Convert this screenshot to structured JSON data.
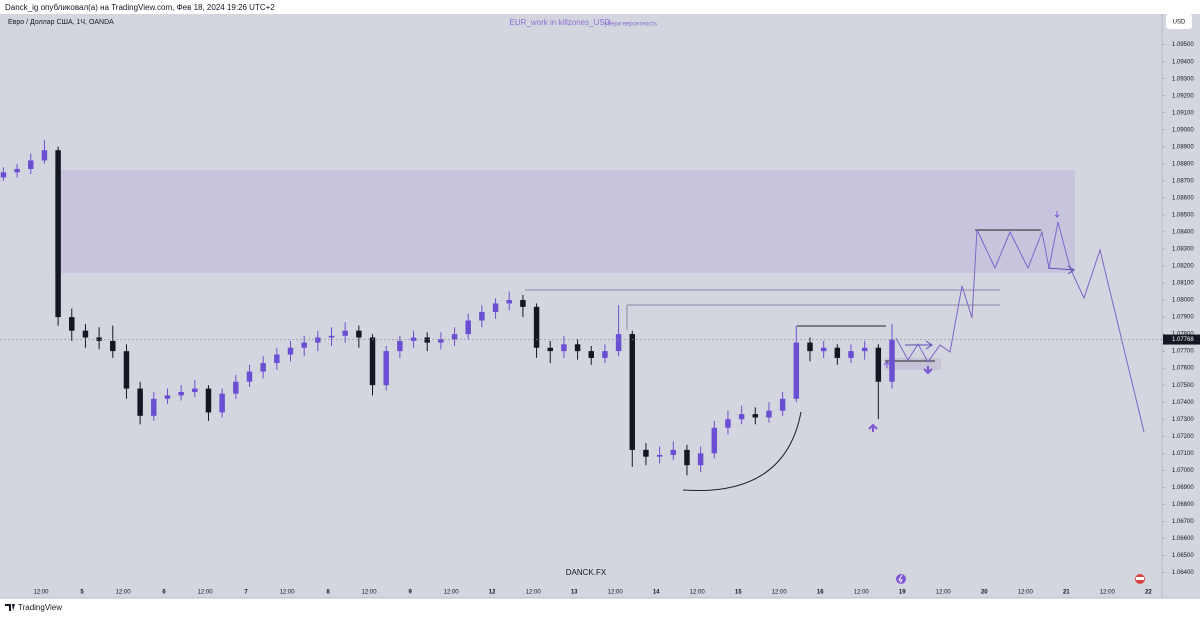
{
  "header": {
    "publisher": "Danck_ig опубликовал(а) на TradingView.com, Фев 18, 2024 19:26 UTC+2",
    "symbol": "Евро / Доллар США, 1Ч, OANDA"
  },
  "indicator": {
    "name": "EUR_work in killzones_USD",
    "note": "убери вероятность"
  },
  "currency_button": "USD",
  "watermark": "DANCK.FX",
  "footer": "TradingView",
  "chart_data": {
    "type": "candlestick",
    "x": [
      -11,
      -7,
      -3,
      1,
      5,
      9,
      13,
      17,
      21,
      25,
      29,
      33,
      37,
      41,
      45,
      49,
      53,
      57,
      61,
      65,
      69,
      73,
      77,
      81,
      85,
      89,
      93,
      97,
      101,
      105,
      109,
      113,
      117,
      121,
      125,
      129,
      133,
      137,
      141,
      145,
      149,
      153,
      157,
      161,
      165,
      169,
      173,
      177,
      181,
      185,
      189,
      193,
      197,
      201,
      205,
      209,
      213,
      217,
      221,
      225,
      229,
      233,
      237,
      241,
      245,
      249
    ],
    "open": [
      1.0872,
      1.0875,
      1.0877,
      1.0882,
      1.0888,
      1.079,
      1.0782,
      1.0778,
      1.0776,
      1.077,
      1.0748,
      1.0732,
      1.0742,
      1.0744,
      1.0746,
      1.0748,
      1.0734,
      1.0745,
      1.0752,
      1.0758,
      1.0763,
      1.0768,
      1.0772,
      1.0775,
      1.0778,
      1.0779,
      1.0782,
      1.0778,
      1.075,
      1.077,
      1.0776,
      1.0778,
      1.0775,
      1.0777,
      1.078,
      1.0788,
      1.0793,
      1.0798,
      1.08,
      1.0796,
      1.0772,
      1.077,
      1.0774,
      1.077,
      1.0766,
      1.077,
      1.078,
      1.0712,
      1.0708,
      1.0709,
      1.0712,
      1.0703,
      1.071,
      1.0725,
      1.073,
      1.0733,
      1.0731,
      1.0735,
      1.0742,
      1.0775,
      1.077,
      1.0772,
      1.0766,
      1.077,
      1.0772,
      1.0752
    ],
    "high": [
      1.0878,
      1.088,
      1.0886,
      1.0894,
      1.089,
      1.0795,
      1.0786,
      1.0784,
      1.0785,
      1.0774,
      1.0752,
      1.0746,
      1.0748,
      1.075,
      1.0753,
      1.075,
      1.0748,
      1.0756,
      1.0762,
      1.0767,
      1.0772,
      1.0776,
      1.0779,
      1.0782,
      1.0784,
      1.0787,
      1.0785,
      1.078,
      1.0773,
      1.0779,
      1.0782,
      1.0781,
      1.0781,
      1.0784,
      1.0792,
      1.0797,
      1.0801,
      1.0805,
      1.0803,
      1.0798,
      1.0776,
      1.0779,
      1.0777,
      1.0773,
      1.0774,
      1.0797,
      1.0782,
      1.0716,
      1.0714,
      1.0717,
      1.0715,
      1.0714,
      1.0729,
      1.0735,
      1.0738,
      1.0737,
      1.074,
      1.0746,
      1.0785,
      1.0778,
      1.0776,
      1.0774,
      1.0774,
      1.0776,
      1.0774,
      1.0786
    ],
    "low": [
      1.087,
      1.0872,
      1.0874,
      1.088,
      1.0785,
      1.0776,
      1.0772,
      1.0771,
      1.0766,
      1.0742,
      1.0727,
      1.0729,
      1.0739,
      1.0741,
      1.0743,
      1.0729,
      1.0731,
      1.0742,
      1.0749,
      1.0754,
      1.0759,
      1.0764,
      1.0767,
      1.077,
      1.0773,
      1.0775,
      1.0772,
      1.0744,
      1.0747,
      1.0766,
      1.0772,
      1.077,
      1.0771,
      1.0773,
      1.0777,
      1.0784,
      1.0789,
      1.0794,
      1.079,
      1.0766,
      1.0763,
      1.0766,
      1.0765,
      1.0762,
      1.0763,
      1.0767,
      1.0702,
      1.0703,
      1.0704,
      1.0706,
      1.0697,
      1.0699,
      1.0707,
      1.0721,
      1.0727,
      1.0727,
      1.0728,
      1.0732,
      1.074,
      1.0764,
      1.0766,
      1.0762,
      1.0763,
      1.0765,
      1.073,
      1.0748
    ],
    "close": [
      1.0875,
      1.0877,
      1.0882,
      1.0888,
      1.079,
      1.0782,
      1.0778,
      1.0776,
      1.077,
      1.0748,
      1.0732,
      1.0742,
      1.0744,
      1.0746,
      1.0748,
      1.0734,
      1.0745,
      1.0752,
      1.0758,
      1.0763,
      1.0768,
      1.0772,
      1.0775,
      1.0778,
      1.0779,
      1.0782,
      1.0778,
      1.075,
      1.077,
      1.0776,
      1.0778,
      1.0775,
      1.0777,
      1.078,
      1.0788,
      1.0793,
      1.0798,
      1.08,
      1.0796,
      1.0772,
      1.077,
      1.0774,
      1.077,
      1.0766,
      1.077,
      1.078,
      1.0712,
      1.0708,
      1.0709,
      1.0712,
      1.0703,
      1.071,
      1.0725,
      1.073,
      1.0733,
      1.0731,
      1.0735,
      1.0742,
      1.0775,
      1.077,
      1.0772,
      1.0766,
      1.077,
      1.0772,
      1.0752,
      1.07768
    ],
    "up_color": "#6b4fd3",
    "down_color": "#131722",
    "last_price": 1.07768,
    "xlim": [
      -12,
      328
    ],
    "xticks": [
      {
        "value": 0,
        "label": "12:00"
      },
      {
        "value": 12,
        "label": "5"
      },
      {
        "value": 24,
        "label": "12:00"
      },
      {
        "value": 36,
        "label": "6"
      },
      {
        "value": 48,
        "label": "12:00"
      },
      {
        "value": 60,
        "label": "7"
      },
      {
        "value": 72,
        "label": "12:00"
      },
      {
        "value": 84,
        "label": "8"
      },
      {
        "value": 96,
        "label": "12:00"
      },
      {
        "value": 108,
        "label": "9"
      },
      {
        "value": 120,
        "label": "12:00"
      },
      {
        "value": 132,
        "label": "12"
      },
      {
        "value": 144,
        "label": "12:00"
      },
      {
        "value": 156,
        "label": "13"
      },
      {
        "value": 168,
        "label": "12:00"
      },
      {
        "value": 180,
        "label": "14"
      },
      {
        "value": 192,
        "label": "12:00"
      },
      {
        "value": 204,
        "label": "15"
      },
      {
        "value": 216,
        "label": "12:00"
      },
      {
        "value": 228,
        "label": "16"
      },
      {
        "value": 240,
        "label": "12:00"
      },
      {
        "value": 252,
        "label": "19"
      },
      {
        "value": 264,
        "label": "12:00"
      },
      {
        "value": 276,
        "label": "20"
      },
      {
        "value": 288,
        "label": "12:00"
      },
      {
        "value": 300,
        "label": "21"
      },
      {
        "value": 312,
        "label": "12:00"
      },
      {
        "value": 324,
        "label": "22"
      }
    ],
    "ylim": [
      1.0625,
      1.0968
    ],
    "yticks": [
      {
        "value": 1.064,
        "label": "1.06400"
      },
      {
        "value": 1.065,
        "label": "1.06500"
      },
      {
        "value": 1.066,
        "label": "1.06600"
      },
      {
        "value": 1.067,
        "label": "1.06700"
      },
      {
        "value": 1.068,
        "label": "1.06800"
      },
      {
        "value": 1.069,
        "label": "1.06900"
      },
      {
        "value": 1.07,
        "label": "1.07000"
      },
      {
        "value": 1.071,
        "label": "1.07100"
      },
      {
        "value": 1.072,
        "label": "1.07200"
      },
      {
        "value": 1.073,
        "label": "1.07300"
      },
      {
        "value": 1.074,
        "label": "1.07400"
      },
      {
        "value": 1.075,
        "label": "1.07500"
      },
      {
        "value": 1.076,
        "label": "1.07600"
      },
      {
        "value": 1.077,
        "label": "1.07700"
      },
      {
        "value": 1.078,
        "label": "1.07800"
      },
      {
        "value": 1.079,
        "label": "1.07900"
      },
      {
        "value": 1.08,
        "label": "1.08000"
      },
      {
        "value": 1.081,
        "label": "1.08100"
      },
      {
        "value": 1.082,
        "label": "1.08200"
      },
      {
        "value": 1.083,
        "label": "1.08300"
      },
      {
        "value": 1.084,
        "label": "1.08400"
      },
      {
        "value": 1.085,
        "label": "1.08500"
      },
      {
        "value": 1.086,
        "label": "1.08600"
      },
      {
        "value": 1.087,
        "label": "1.08700"
      },
      {
        "value": 1.088,
        "label": "1.08800"
      },
      {
        "value": 1.089,
        "label": "1.08900"
      },
      {
        "value": 1.09,
        "label": "1.09000"
      },
      {
        "value": 1.091,
        "label": "1.09100"
      },
      {
        "value": 1.092,
        "label": "1.09200"
      },
      {
        "value": 1.093,
        "label": "1.09300"
      },
      {
        "value": 1.094,
        "label": "1.09400"
      },
      {
        "value": 1.095,
        "label": "1.09500"
      }
    ]
  }
}
